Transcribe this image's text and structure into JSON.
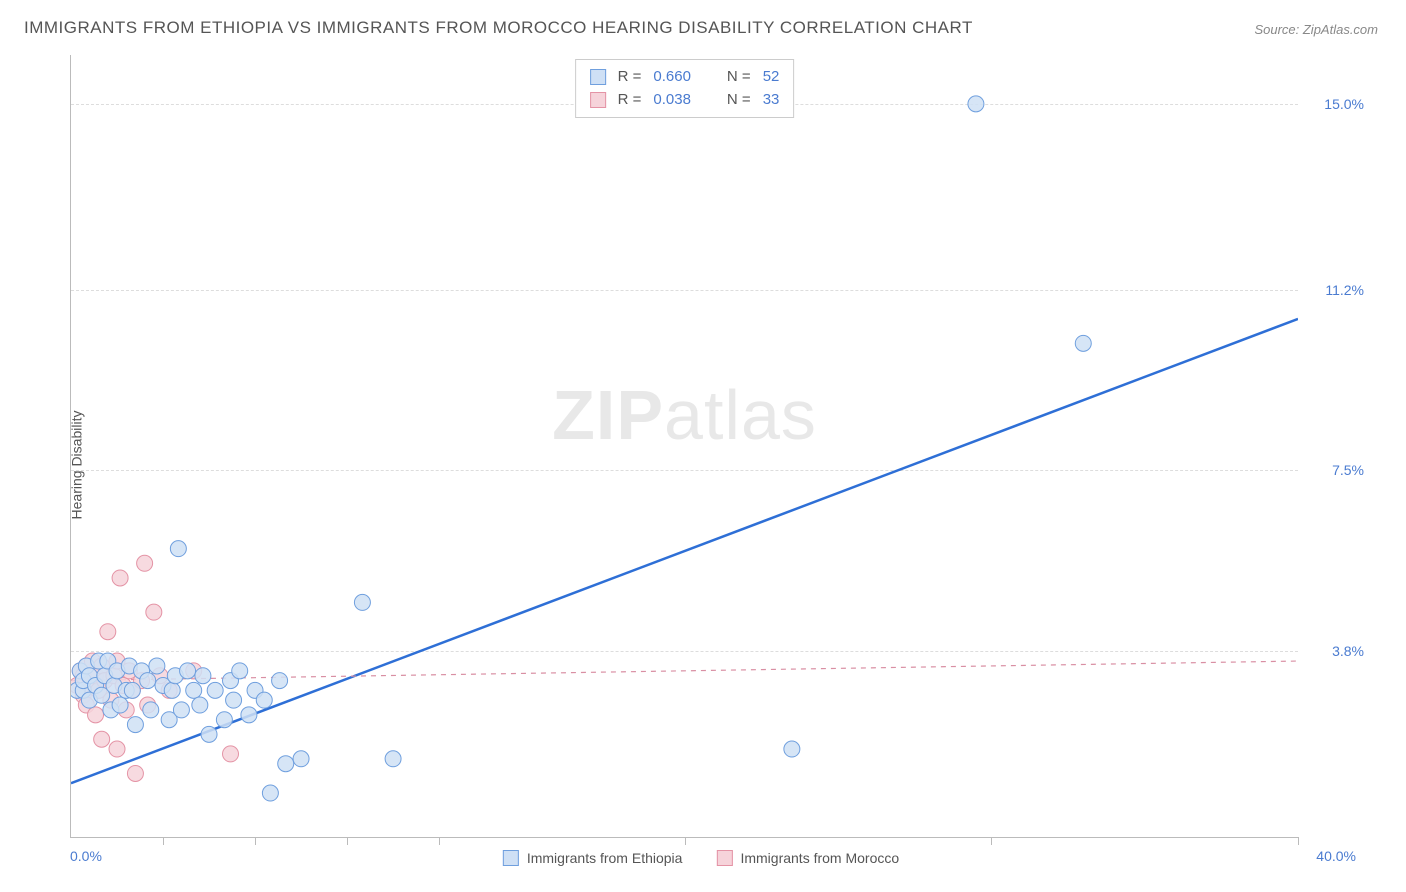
{
  "title": "IMMIGRANTS FROM ETHIOPIA VS IMMIGRANTS FROM MOROCCO HEARING DISABILITY CORRELATION CHART",
  "source_prefix": "Source: ",
  "source_name": "ZipAtlas.com",
  "yaxis_label": "Hearing Disability",
  "watermark_bold": "ZIP",
  "watermark_light": "atlas",
  "chart": {
    "type": "scatter",
    "background_color": "#ffffff",
    "grid_color": "#dddddd",
    "axis_color": "#bbbbbb",
    "xlim": [
      0,
      40
    ],
    "ylim": [
      0,
      16
    ],
    "x_min_label": "0.0%",
    "x_max_label": "40.0%",
    "x_tick_positions": [
      3,
      6,
      9,
      12,
      20,
      30,
      40
    ],
    "y_gridlines": [
      {
        "y": 3.8,
        "label": "3.8%"
      },
      {
        "y": 7.5,
        "label": "7.5%"
      },
      {
        "y": 11.2,
        "label": "11.2%"
      },
      {
        "y": 15.0,
        "label": "15.0%"
      }
    ],
    "series": [
      {
        "name": "Immigrants from Ethiopia",
        "marker_fill": "#cfe0f5",
        "marker_stroke": "#6f9fde",
        "marker_radius": 8,
        "line_color": "#2e6fd6",
        "line_width": 2.5,
        "line_dash": "none",
        "r_label": "R = ",
        "r_value": "0.660",
        "n_label": "N = ",
        "n_value": "52",
        "trend": {
          "x1": 0,
          "y1": 1.1,
          "x2": 40,
          "y2": 10.6
        },
        "points": [
          [
            0.2,
            3.0
          ],
          [
            0.3,
            3.4
          ],
          [
            0.4,
            3.0
          ],
          [
            0.4,
            3.2
          ],
          [
            0.5,
            3.5
          ],
          [
            0.6,
            2.8
          ],
          [
            0.6,
            3.3
          ],
          [
            0.8,
            3.1
          ],
          [
            0.9,
            3.6
          ],
          [
            1.0,
            2.9
          ],
          [
            1.1,
            3.3
          ],
          [
            1.2,
            3.6
          ],
          [
            1.3,
            2.6
          ],
          [
            1.4,
            3.1
          ],
          [
            1.5,
            3.4
          ],
          [
            1.6,
            2.7
          ],
          [
            1.8,
            3.0
          ],
          [
            1.9,
            3.5
          ],
          [
            2.0,
            3.0
          ],
          [
            2.1,
            2.3
          ],
          [
            2.3,
            3.4
          ],
          [
            2.5,
            3.2
          ],
          [
            2.6,
            2.6
          ],
          [
            2.8,
            3.5
          ],
          [
            3.0,
            3.1
          ],
          [
            3.2,
            2.4
          ],
          [
            3.3,
            3.0
          ],
          [
            3.4,
            3.3
          ],
          [
            3.5,
            5.9
          ],
          [
            3.6,
            2.6
          ],
          [
            3.8,
            3.4
          ],
          [
            4.0,
            3.0
          ],
          [
            4.2,
            2.7
          ],
          [
            4.3,
            3.3
          ],
          [
            4.5,
            2.1
          ],
          [
            4.7,
            3.0
          ],
          [
            5.0,
            2.4
          ],
          [
            5.2,
            3.2
          ],
          [
            5.3,
            2.8
          ],
          [
            5.5,
            3.4
          ],
          [
            5.8,
            2.5
          ],
          [
            6.0,
            3.0
          ],
          [
            6.3,
            2.8
          ],
          [
            6.5,
            0.9
          ],
          [
            6.8,
            3.2
          ],
          [
            7.0,
            1.5
          ],
          [
            7.5,
            1.6
          ],
          [
            9.5,
            4.8
          ],
          [
            10.5,
            1.6
          ],
          [
            23.5,
            1.8
          ],
          [
            29.5,
            15.0
          ],
          [
            33.0,
            10.1
          ]
        ]
      },
      {
        "name": "Immigrants from Morocco",
        "marker_fill": "#f6d3da",
        "marker_stroke": "#e493a5",
        "marker_radius": 8,
        "line_color": "#d98fa3",
        "line_width": 1.2,
        "line_dash": "5,5",
        "r_label": "R = ",
        "r_value": "0.038",
        "n_label": "N = ",
        "n_value": "33",
        "trend": {
          "x1": 0,
          "y1": 3.2,
          "x2": 40,
          "y2": 3.6
        },
        "points": [
          [
            0.2,
            3.1
          ],
          [
            0.3,
            3.4
          ],
          [
            0.4,
            2.9
          ],
          [
            0.4,
            3.3
          ],
          [
            0.5,
            3.5
          ],
          [
            0.5,
            2.7
          ],
          [
            0.6,
            3.1
          ],
          [
            0.7,
            3.6
          ],
          [
            0.8,
            2.5
          ],
          [
            0.8,
            3.3
          ],
          [
            0.9,
            3.0
          ],
          [
            1.0,
            3.5
          ],
          [
            1.0,
            2.0
          ],
          [
            1.1,
            3.2
          ],
          [
            1.2,
            4.2
          ],
          [
            1.3,
            2.8
          ],
          [
            1.4,
            3.3
          ],
          [
            1.5,
            1.8
          ],
          [
            1.5,
            3.6
          ],
          [
            1.6,
            5.3
          ],
          [
            1.7,
            3.1
          ],
          [
            1.8,
            2.6
          ],
          [
            1.9,
            3.4
          ],
          [
            2.0,
            3.0
          ],
          [
            2.1,
            1.3
          ],
          [
            2.3,
            3.2
          ],
          [
            2.4,
            5.6
          ],
          [
            2.5,
            2.7
          ],
          [
            2.7,
            4.6
          ],
          [
            2.9,
            3.3
          ],
          [
            3.2,
            3.0
          ],
          [
            4.0,
            3.4
          ],
          [
            5.2,
            1.7
          ]
        ]
      }
    ]
  }
}
